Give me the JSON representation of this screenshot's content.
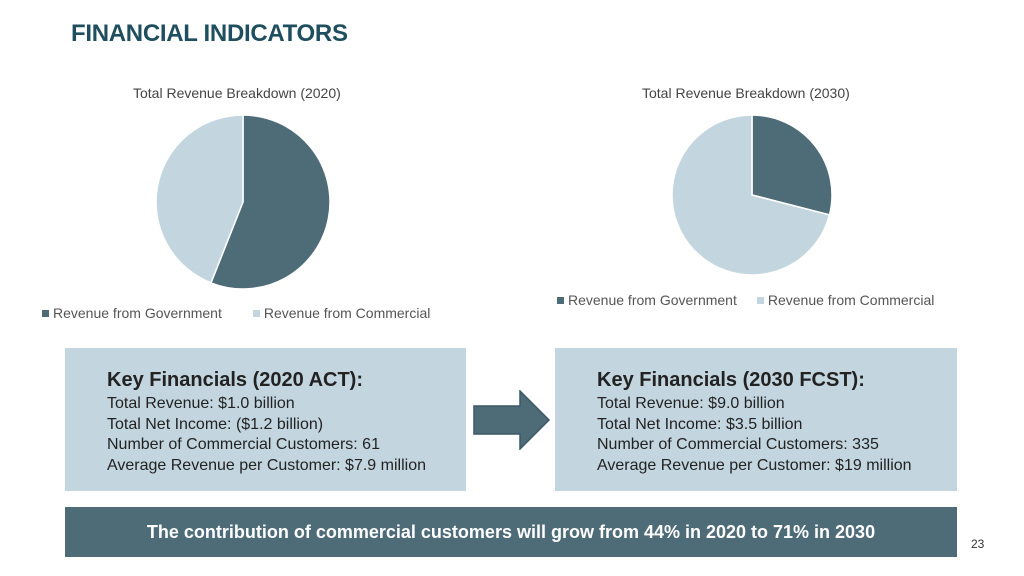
{
  "slide": {
    "title": "FINANCIAL INDICATORS",
    "page_number": "23"
  },
  "colors": {
    "government": "#4e6b78",
    "commercial": "#c3d6e0",
    "title": "#1f4e5e",
    "banner": "#4e6b78"
  },
  "chart_data": [
    {
      "type": "pie",
      "title": "Total Revenue Breakdown (2020)",
      "categories": [
        "Revenue from Government",
        "Revenue from Commercial"
      ],
      "values": [
        56,
        44
      ],
      "legend": "bottom"
    },
    {
      "type": "pie",
      "title": "Total Revenue Breakdown (2030)",
      "categories": [
        "Revenue from Government",
        "Revenue from Commercial"
      ],
      "values": [
        29,
        71
      ],
      "legend": "bottom"
    }
  ],
  "legend_2020": {
    "government": "Revenue from Government",
    "commercial": "Revenue from Commercial"
  },
  "legend_2030": {
    "government": "Revenue from Government",
    "commercial": "Revenue from Commercial"
  },
  "financials_2020": {
    "heading": "Key Financials (2020 ACT):",
    "lines": [
      "Total Revenue: $1.0 billion",
      "Total Net Income: ($1.2 billion)",
      "Number of Commercial Customers: 61",
      "Average Revenue per Customer: $7.9 million"
    ]
  },
  "financials_2030": {
    "heading": "Key Financials (2030 FCST):",
    "lines": [
      "Total Revenue: $9.0 billion",
      "Total Net Income: $3.5 billion",
      "Number of Commercial Customers: 335",
      "Average Revenue per Customer: $19 million"
    ]
  },
  "banner": {
    "text": "The contribution of commercial customers will grow from 44% in 2020 to 71% in 2030"
  }
}
